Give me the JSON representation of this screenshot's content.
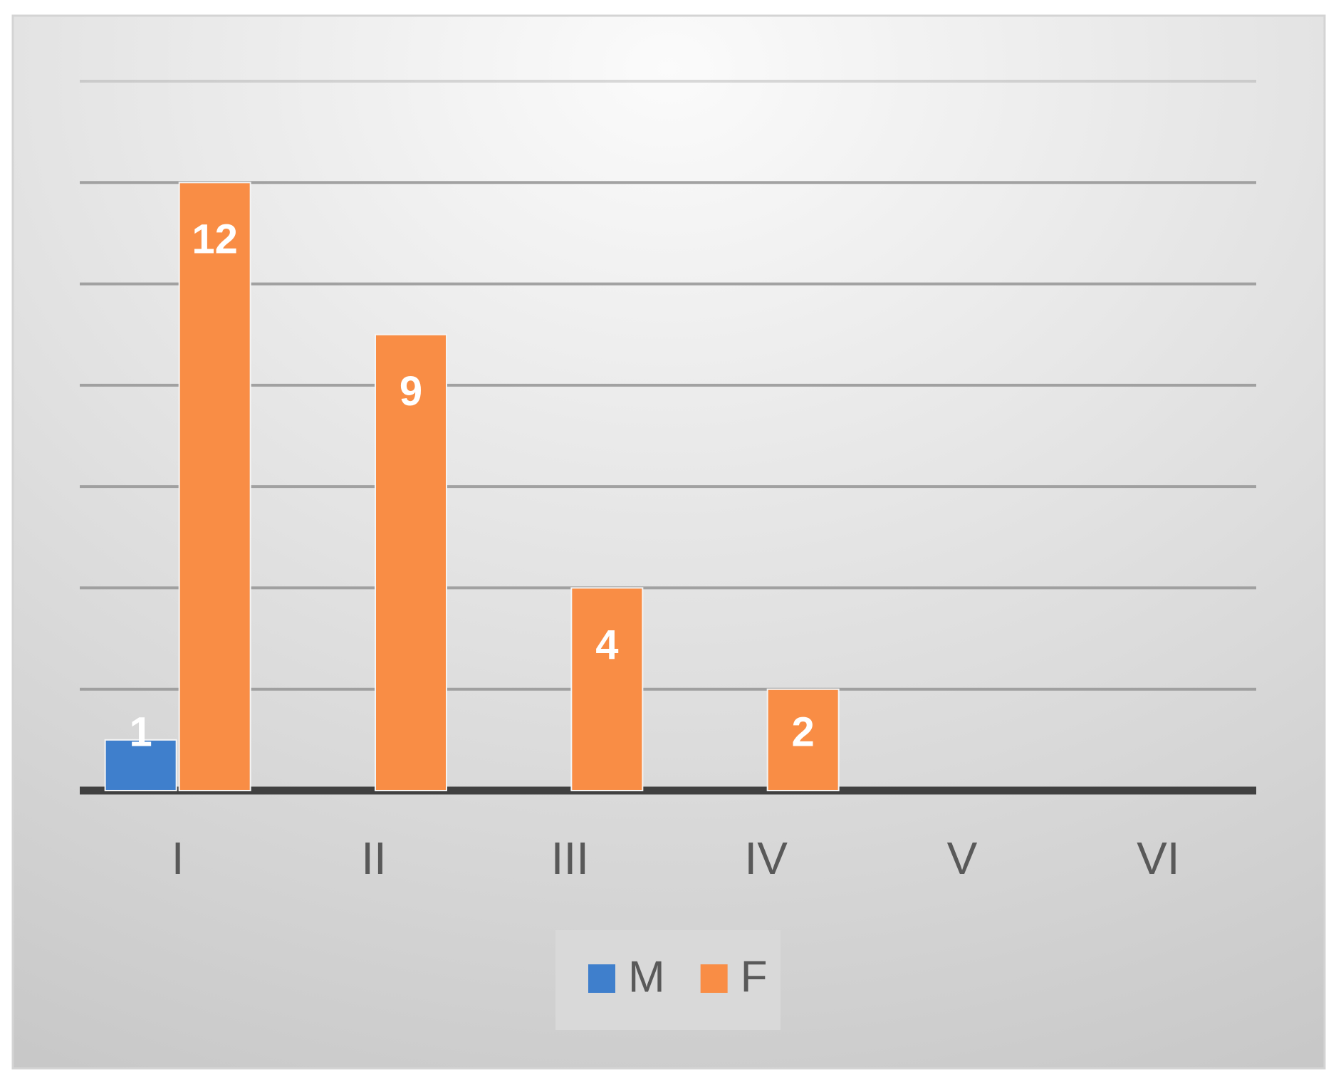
{
  "chart_data": {
    "type": "bar",
    "categories": [
      "I",
      "II",
      "III",
      "IV",
      "V",
      "VI"
    ],
    "series": [
      {
        "name": "M",
        "color": "#3f7fcc",
        "values": [
          1,
          null,
          null,
          null,
          null,
          null
        ]
      },
      {
        "name": "F",
        "color": "#f98d45",
        "values": [
          12,
          9,
          4,
          2,
          null,
          null
        ]
      }
    ],
    "ylim": [
      0,
      14
    ],
    "yticks": [
      0,
      2,
      4,
      6,
      8,
      10,
      12,
      14
    ],
    "grid": true,
    "legend": "bottom"
  }
}
